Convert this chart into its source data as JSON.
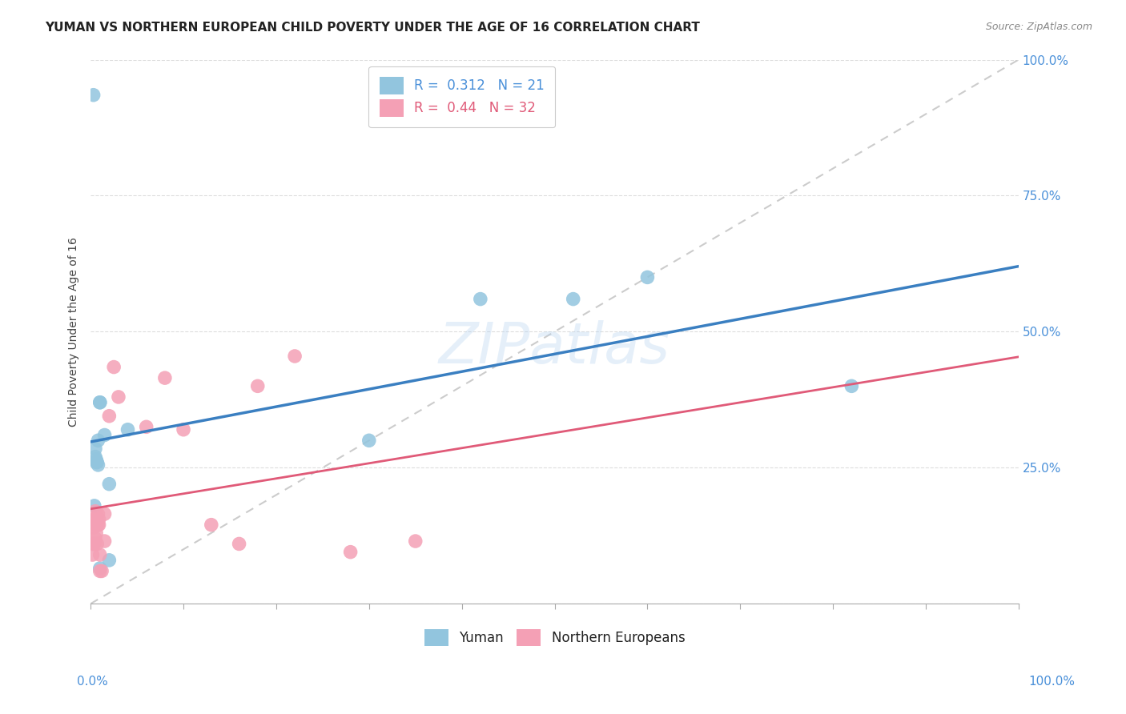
{
  "title": "YUMAN VS NORTHERN EUROPEAN CHILD POVERTY UNDER THE AGE OF 16 CORRELATION CHART",
  "source": "Source: ZipAtlas.com",
  "ylabel": "Child Poverty Under the Age of 16",
  "yuman_label": "Yuman",
  "northern_label": "Northern Europeans",
  "yuman_R": 0.312,
  "yuman_N": 21,
  "northern_R": 0.44,
  "northern_N": 32,
  "xlim": [
    0,
    1
  ],
  "ylim": [
    0,
    1
  ],
  "xticks": [
    0.0,
    0.1,
    0.2,
    0.3,
    0.4,
    0.5,
    0.6,
    0.7,
    0.8,
    0.9,
    1.0
  ],
  "yticks": [
    0.0,
    0.25,
    0.5,
    0.75,
    1.0
  ],
  "yuman_color": "#92c5de",
  "northern_color": "#f4a0b5",
  "yuman_line_color": "#3a7fc1",
  "northern_line_color": "#e05a78",
  "diagonal_color": "#cccccc",
  "background_color": "#ffffff",
  "tick_color": "#4a90d9",
  "yuman_x": [
    0.003,
    0.004,
    0.005,
    0.005,
    0.006,
    0.006,
    0.007,
    0.008,
    0.008,
    0.01,
    0.01,
    0.01,
    0.015,
    0.02,
    0.02,
    0.04,
    0.3,
    0.42,
    0.52,
    0.6,
    0.82
  ],
  "yuman_y": [
    0.935,
    0.18,
    0.285,
    0.27,
    0.26,
    0.265,
    0.26,
    0.255,
    0.3,
    0.37,
    0.37,
    0.065,
    0.31,
    0.22,
    0.08,
    0.32,
    0.3,
    0.56,
    0.56,
    0.6,
    0.4
  ],
  "northern_x": [
    0.002,
    0.003,
    0.003,
    0.004,
    0.004,
    0.005,
    0.005,
    0.005,
    0.006,
    0.006,
    0.007,
    0.008,
    0.008,
    0.009,
    0.009,
    0.01,
    0.01,
    0.012,
    0.015,
    0.015,
    0.02,
    0.025,
    0.03,
    0.06,
    0.08,
    0.1,
    0.13,
    0.16,
    0.18,
    0.22,
    0.28,
    0.35
  ],
  "northern_y": [
    0.09,
    0.11,
    0.14,
    0.11,
    0.155,
    0.12,
    0.155,
    0.17,
    0.13,
    0.145,
    0.11,
    0.145,
    0.165,
    0.145,
    0.155,
    0.06,
    0.09,
    0.06,
    0.115,
    0.165,
    0.345,
    0.435,
    0.38,
    0.325,
    0.415,
    0.32,
    0.145,
    0.11,
    0.4,
    0.455,
    0.095,
    0.115
  ],
  "watermark": "ZIPatlas",
  "title_fontsize": 11,
  "label_fontsize": 10,
  "tick_fontsize": 11,
  "legend_fontsize": 12
}
